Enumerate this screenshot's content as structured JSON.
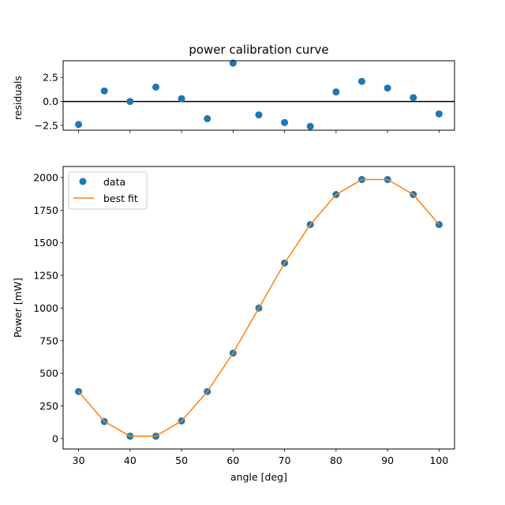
{
  "chart_data": [
    {
      "type": "scatter",
      "title": "power calibration curve",
      "xlabel": "",
      "ylabel": "residuals",
      "x": [
        30,
        35,
        40,
        45,
        50,
        55,
        60,
        65,
        70,
        75,
        80,
        85,
        90,
        95,
        100
      ],
      "series": [
        {
          "values": [
            -2.4,
            1.1,
            0.0,
            1.5,
            0.3,
            -1.8,
            4.0,
            -1.4,
            -2.2,
            -2.6,
            1.0,
            2.1,
            1.4,
            0.4,
            -1.3
          ],
          "color": "#1f77b4"
        }
      ],
      "zero_line": 0,
      "xlim": [
        27,
        103
      ],
      "ylim": [
        -3.0,
        4.25
      ],
      "yticks": [
        -2.5,
        0.0,
        2.5
      ],
      "ytick_labels": [
        "−2.5",
        "0.0",
        "2.5"
      ],
      "xticks": [
        30,
        40,
        50,
        60,
        70,
        80,
        90,
        100
      ],
      "show_xtick_labels": false,
      "grid": false
    },
    {
      "type": "line",
      "title": "",
      "xlabel": "angle [deg]",
      "ylabel": "Power [mW]",
      "x": [
        30,
        35,
        40,
        45,
        50,
        55,
        60,
        65,
        70,
        75,
        80,
        85,
        90,
        95,
        100
      ],
      "series": [
        {
          "name": "data",
          "style": "markers",
          "values": [
            360,
            130,
            18,
            18,
            135,
            360,
            655,
            1000,
            1345,
            1640,
            1870,
            1985,
            1985,
            1870,
            1640
          ],
          "color": "#1f77b4"
        },
        {
          "name": "best fit",
          "style": "line",
          "values": [
            360,
            130,
            18,
            18,
            135,
            360,
            655,
            1000,
            1345,
            1640,
            1870,
            1985,
            1985,
            1870,
            1640
          ],
          "color": "#ff7f0e"
        }
      ],
      "xlim": [
        27,
        103
      ],
      "ylim": [
        -80,
        2085
      ],
      "yticks": [
        0,
        250,
        500,
        750,
        1000,
        1250,
        1500,
        1750,
        2000
      ],
      "ytick_labels": [
        "0",
        "250",
        "500",
        "750",
        "1000",
        "1250",
        "1500",
        "1750",
        "2000"
      ],
      "xticks": [
        30,
        40,
        50,
        60,
        70,
        80,
        90,
        100
      ],
      "xtick_labels": [
        "30",
        "40",
        "50",
        "60",
        "70",
        "80",
        "90",
        "100"
      ],
      "legend": "top-left",
      "grid": false
    }
  ]
}
